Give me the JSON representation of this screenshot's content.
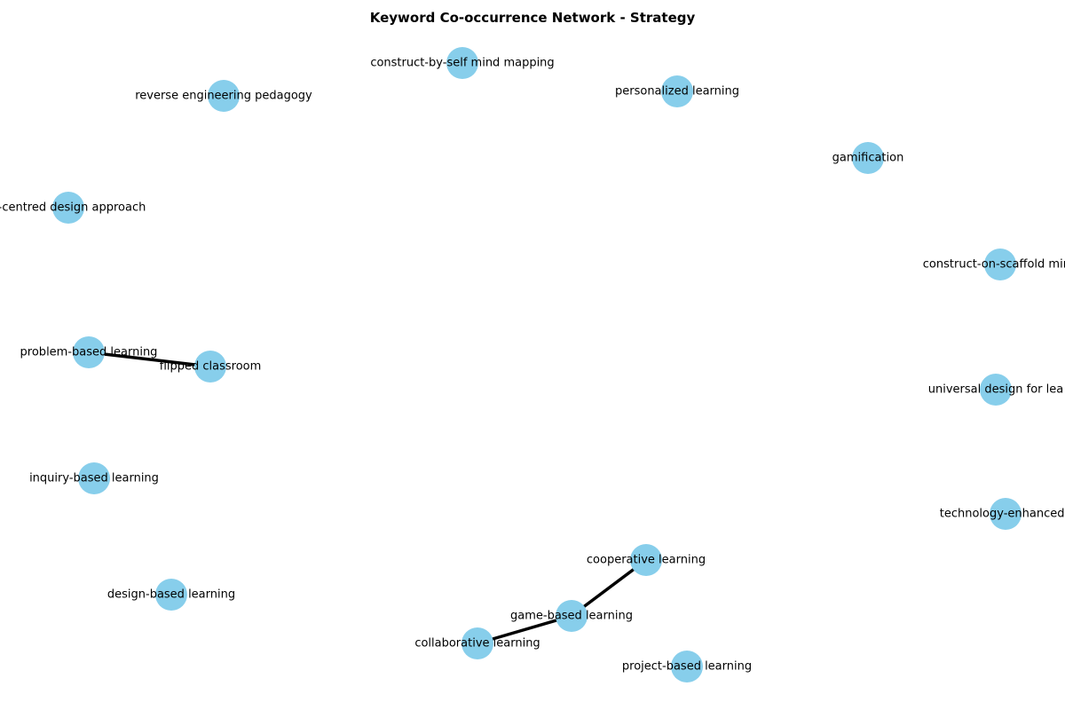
{
  "title": "Keyword Co-occurrence Network - Strategy",
  "colors": {
    "node_fill": "#87ceeb",
    "edge_stroke": "#000000",
    "label_text": "#000000"
  },
  "nodes": [
    {
      "id": "construct-by-self",
      "label": "construct-by-self mind mapping"
    },
    {
      "id": "reverse-engineering",
      "label": "reverse engineering pedagogy"
    },
    {
      "id": "personalized",
      "label": "personalized learning"
    },
    {
      "id": "gamification",
      "label": "gamification"
    },
    {
      "id": "centred-design",
      "label": "e-centred design approach"
    },
    {
      "id": "construct-on-scaffold",
      "label": "construct-on-scaffold mind"
    },
    {
      "id": "problem-based",
      "label": "problem-based learning"
    },
    {
      "id": "flipped",
      "label": "flipped classroom"
    },
    {
      "id": "universal-design",
      "label": "universal design for lea"
    },
    {
      "id": "inquiry-based",
      "label": "inquiry-based learning"
    },
    {
      "id": "technology-enhanced",
      "label": "technology-enhanced l"
    },
    {
      "id": "cooperative",
      "label": "cooperative learning"
    },
    {
      "id": "design-based",
      "label": "design-based learning"
    },
    {
      "id": "game-based",
      "label": "game-based learning"
    },
    {
      "id": "collaborative",
      "label": "collaborative learning"
    },
    {
      "id": "project-based",
      "label": "project-based learning"
    }
  ],
  "edges": [
    {
      "source": "problem-based",
      "target": "flipped"
    },
    {
      "source": "cooperative",
      "target": "game-based"
    },
    {
      "source": "game-based",
      "target": "collaborative"
    }
  ]
}
